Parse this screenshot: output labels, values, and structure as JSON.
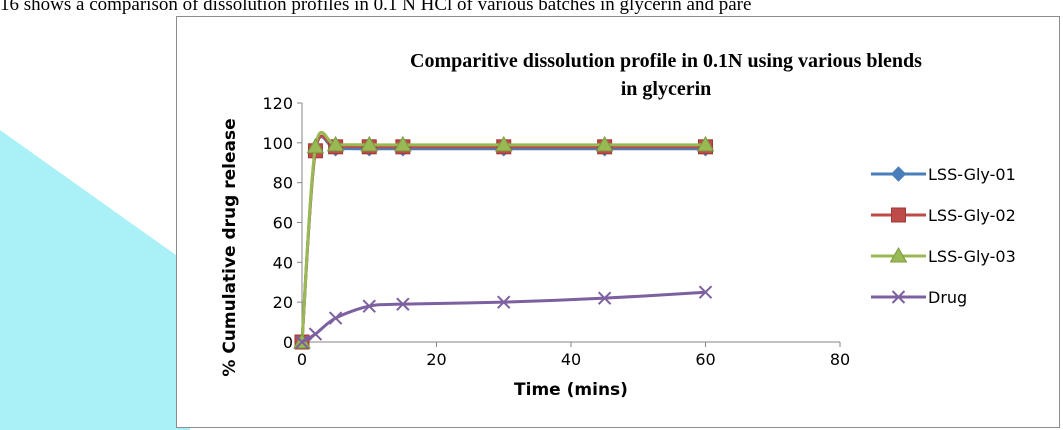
{
  "page": {
    "caption": "16 shows a comparison of dissolution profiles in 0.1 N HCl of various batches in glycerin and pare"
  },
  "chart_data": {
    "type": "line",
    "title": "Comparitive dissolution profile in 0.1N using various blends in glycerin",
    "title_lines": [
      "Comparitive dissolution profile in 0.1N using various blends",
      "in glycerin"
    ],
    "xlabel": "Time (mins)",
    "ylabel": "% Cumulative drug release",
    "xlim": [
      0,
      80
    ],
    "ylim": [
      0,
      120
    ],
    "xticks": [
      0,
      20,
      40,
      60,
      80
    ],
    "yticks": [
      0,
      20,
      40,
      60,
      80,
      100,
      120
    ],
    "grid": false,
    "legend_position": "right",
    "series": [
      {
        "name": "LSS-Gly-01",
        "color": "#4a7ebb",
        "marker": "diamond",
        "x": [
          0,
          2,
          5,
          10,
          15,
          30,
          45,
          60
        ],
        "y": [
          0,
          96,
          97,
          97,
          97,
          97,
          97,
          97
        ]
      },
      {
        "name": "LSS-Gly-02",
        "color": "#be4b48",
        "marker": "square",
        "x": [
          0,
          2,
          5,
          10,
          15,
          30,
          45,
          60
        ],
        "y": [
          0,
          96,
          98,
          98,
          98,
          98,
          98,
          98
        ]
      },
      {
        "name": "LSS-Gly-03",
        "color": "#98b954",
        "marker": "triangle",
        "x": [
          0,
          2,
          5,
          10,
          15,
          30,
          45,
          60
        ],
        "y": [
          0,
          98,
          99,
          99,
          99,
          99,
          99,
          99
        ]
      },
      {
        "name": "Drug",
        "color": "#7d60a0",
        "marker": "x",
        "x": [
          0,
          2,
          5,
          10,
          15,
          30,
          45,
          60
        ],
        "y": [
          0,
          4,
          12,
          18,
          19,
          20,
          22,
          25
        ]
      }
    ]
  }
}
